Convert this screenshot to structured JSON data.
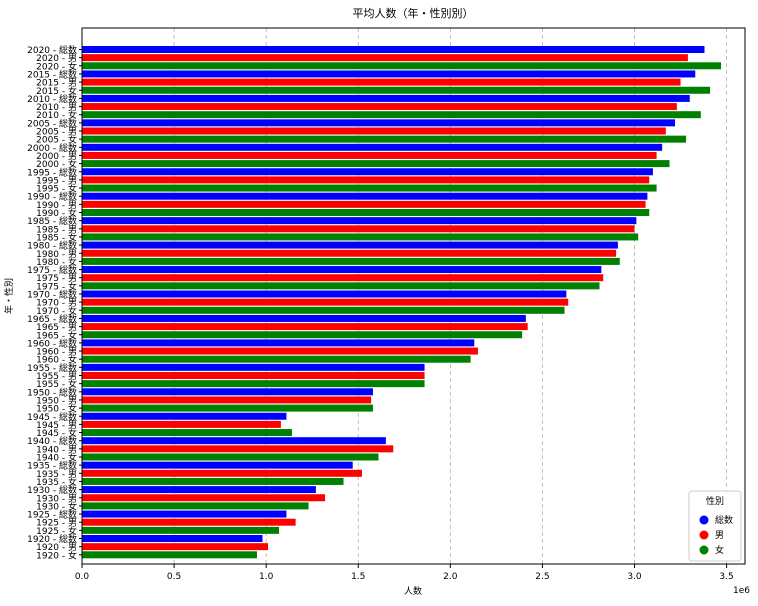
{
  "chart_data": {
    "type": "bar",
    "orientation": "horizontal",
    "title": "平均人数（年・性別別）",
    "xlabel": "人数",
    "ylabel": "年・性別",
    "x_offset_label": "1e6",
    "xlim": [
      0,
      3.6
    ],
    "x_ticks": [
      "0.0",
      "0.5",
      "1.0",
      "1.5",
      "2.0",
      "2.5",
      "3.0",
      "3.5"
    ],
    "grid": "x-dashed",
    "legend": {
      "title": "性別",
      "position": "bottom-right",
      "entries": [
        "総数",
        "男",
        "女"
      ]
    },
    "colors": {
      "総数": "#0000ff",
      "男": "#ff0000",
      "女": "#008000"
    },
    "categories": [
      "2020 - 総数",
      "2020 - 男",
      "2020 - 女",
      "2015 - 総数",
      "2015 - 男",
      "2015 - 女",
      "2010 - 総数",
      "2010 - 男",
      "2010 - 女",
      "2005 - 総数",
      "2005 - 男",
      "2005 - 女",
      "2000 - 総数",
      "2000 - 男",
      "2000 - 女",
      "1995 - 総数",
      "1995 - 男",
      "1995 - 女",
      "1990 - 総数",
      "1990 - 男",
      "1990 - 女",
      "1985 - 総数",
      "1985 - 男",
      "1985 - 女",
      "1980 - 総数",
      "1980 - 男",
      "1980 - 女",
      "1975 - 総数",
      "1975 - 男",
      "1975 - 女",
      "1970 - 総数",
      "1970 - 男",
      "1970 - 女",
      "1965 - 総数",
      "1965 - 男",
      "1965 - 女",
      "1960 - 総数",
      "1960 - 男",
      "1960 - 女",
      "1955 - 総数",
      "1955 - 男",
      "1955 - 女",
      "1950 - 総数",
      "1950 - 男",
      "1950 - 女",
      "1945 - 総数",
      "1945 - 男",
      "1945 - 女",
      "1940 - 総数",
      "1940 - 男",
      "1940 - 女",
      "1935 - 総数",
      "1935 - 男",
      "1935 - 女",
      "1930 - 総数",
      "1930 - 男",
      "1930 - 女",
      "1925 - 総数",
      "1925 - 男",
      "1925 - 女",
      "1920 - 総数",
      "1920 - 男",
      "1920 - 女"
    ],
    "series_order": [
      "総数",
      "男",
      "女",
      "総数",
      "男",
      "女",
      "総数",
      "男",
      "女",
      "総数",
      "男",
      "女",
      "総数",
      "男",
      "女",
      "総数",
      "男",
      "女",
      "総数",
      "男",
      "女",
      "総数",
      "男",
      "女",
      "総数",
      "男",
      "女",
      "総数",
      "男",
      "女",
      "総数",
      "男",
      "女",
      "総数",
      "男",
      "女",
      "総数",
      "男",
      "女",
      "総数",
      "男",
      "女",
      "総数",
      "男",
      "女",
      "総数",
      "男",
      "女",
      "総数",
      "男",
      "女",
      "総数",
      "男",
      "女",
      "総数",
      "男",
      "女",
      "総数",
      "男",
      "女",
      "総数",
      "男",
      "女"
    ],
    "values": [
      3.38,
      3.29,
      3.47,
      3.33,
      3.25,
      3.41,
      3.3,
      3.23,
      3.36,
      3.22,
      3.17,
      3.28,
      3.15,
      3.12,
      3.19,
      3.1,
      3.08,
      3.12,
      3.07,
      3.06,
      3.08,
      3.01,
      3.0,
      3.02,
      2.91,
      2.9,
      2.92,
      2.82,
      2.83,
      2.81,
      2.63,
      2.64,
      2.62,
      2.41,
      2.42,
      2.39,
      2.13,
      2.15,
      2.11,
      1.86,
      1.86,
      1.86,
      1.58,
      1.57,
      1.58,
      1.11,
      1.08,
      1.14,
      1.65,
      1.69,
      1.61,
      1.47,
      1.52,
      1.42,
      1.27,
      1.32,
      1.23,
      1.11,
      1.16,
      1.07,
      0.98,
      1.01,
      0.95
    ]
  }
}
